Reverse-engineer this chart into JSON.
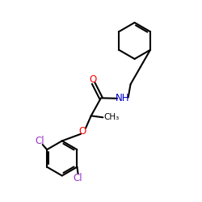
{
  "background_color": "#ffffff",
  "bond_color": "#000000",
  "O_color": "#ff0000",
  "N_color": "#0000cd",
  "Cl_color": "#9932cc",
  "figsize": [
    2.5,
    2.5
  ],
  "dpi": 100,
  "xlim": [
    0,
    10
  ],
  "ylim": [
    0,
    10
  ]
}
